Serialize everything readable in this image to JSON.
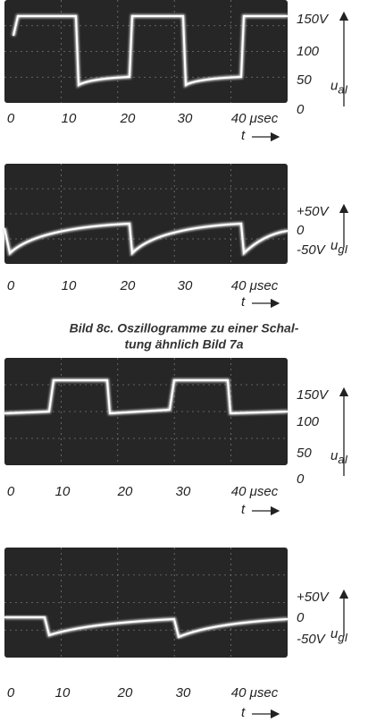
{
  "caption": [
    "Bild 8c. Oszillogramme zu einer Schal-",
    "tung ähnlich Bild 7a"
  ],
  "panels": [
    {
      "y_labels": [
        "150V",
        "100",
        "50",
        "0"
      ],
      "x_labels": [
        "0",
        "10",
        "20",
        "30",
        "40 μsec"
      ],
      "axis_label": "t",
      "quantity": "u",
      "subscript": "aI"
    },
    {
      "y_labels": [
        "+50V",
        "0",
        "-50V"
      ],
      "x_labels": [
        "0",
        "10",
        "20",
        "30",
        "40 μsec"
      ],
      "axis_label": "t",
      "quantity": "u",
      "subscript": "gI"
    },
    {
      "y_labels": [
        "150V",
        "100",
        "50",
        "0"
      ],
      "x_labels": [
        "0",
        "10",
        "20",
        "30",
        "40 μsec"
      ],
      "axis_label": "t",
      "quantity": "u",
      "subscript": "aI"
    },
    {
      "y_labels": [
        "+50V",
        "0",
        "-50V"
      ],
      "x_labels": [
        "0",
        "10",
        "20",
        "30",
        "40 μsec"
      ],
      "axis_label": "t",
      "quantity": "u",
      "subscript": "gI"
    }
  ]
}
